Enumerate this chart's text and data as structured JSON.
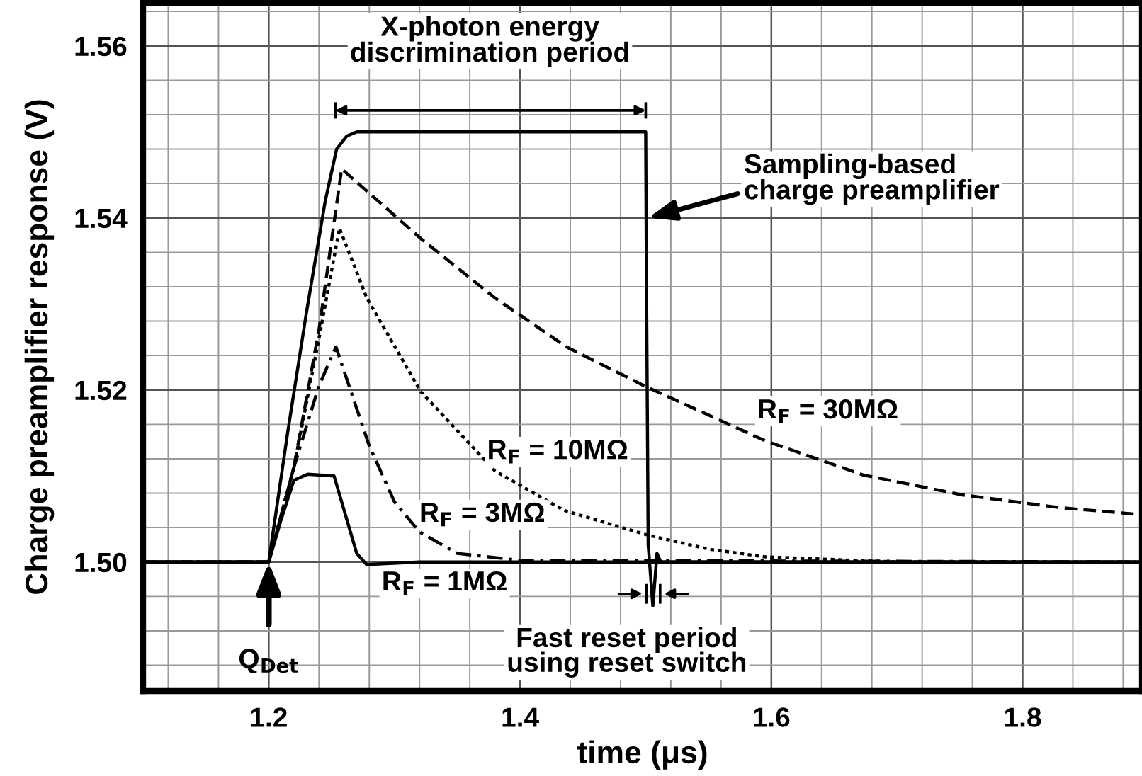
{
  "chart_data": {
    "type": "line",
    "xlabel": "time (μs)",
    "ylabel": "Charge preamplifier response (V)",
    "xlim": [
      1.1,
      1.895
    ],
    "xticks": [
      1.2,
      1.4,
      1.6,
      1.8
    ],
    "ylim": [
      1.485,
      1.565
    ],
    "yticks": [
      {
        "value": 1.5,
        "label": "1.50"
      },
      {
        "value": 1.52,
        "label": "1.52"
      },
      {
        "value": 1.54,
        "label": "1.54"
      },
      {
        "value": 1.56,
        "label": "1.56"
      }
    ],
    "grid": true,
    "legend": false,
    "series": [
      {
        "color": "#000000",
        "line_style": "solid",
        "x": [
          1.1,
          1.2,
          1.215,
          1.23,
          1.245,
          1.254,
          1.262,
          1.27,
          1.3,
          1.4,
          1.5,
          1.5005,
          1.502,
          1.5057,
          1.509,
          1.512,
          1.52,
          1.6,
          1.895
        ],
        "values": [
          1.5,
          1.5,
          1.515,
          1.529,
          1.542,
          1.548,
          1.5495,
          1.55,
          1.55,
          1.55,
          1.55,
          1.535,
          1.502,
          1.4949,
          1.501,
          1.5,
          1.5,
          1.5,
          1.5
        ]
      },
      {
        "name": "R$_{F}$ = 1MΩ",
        "color": "#000000",
        "line_style": "solid",
        "x": [
          1.1,
          1.2,
          1.21,
          1.22,
          1.231,
          1.252,
          1.26,
          1.27,
          1.278,
          1.29,
          1.32,
          1.895
        ],
        "values": [
          1.5,
          1.5,
          1.505,
          1.5095,
          1.5102,
          1.51,
          1.506,
          1.501,
          1.4997,
          1.4998,
          1.5,
          1.5
        ]
      },
      {
        "name": "R$_{F}$ = 3MΩ",
        "color": "#000000",
        "line_style": "dashdot",
        "x": [
          1.1,
          1.2,
          1.22,
          1.24,
          1.2535,
          1.265,
          1.28,
          1.3,
          1.32,
          1.35,
          1.4,
          1.895
        ],
        "values": [
          1.5,
          1.5,
          1.511,
          1.5205,
          1.525,
          1.52,
          1.5135,
          1.507,
          1.5035,
          1.501,
          1.5002,
          1.5
        ]
      },
      {
        "name": "R$_{F}$ = 10MΩ",
        "color": "#000000",
        "line_style": "dotted",
        "x": [
          1.1,
          1.2,
          1.22,
          1.24,
          1.2563,
          1.278,
          1.321,
          1.38,
          1.435,
          1.5,
          1.55,
          1.595,
          1.7,
          1.895
        ],
        "values": [
          1.5,
          1.5,
          1.511,
          1.526,
          1.5388,
          1.5307,
          1.5198,
          1.5106,
          1.506,
          1.5032,
          1.5015,
          1.5006,
          1.5,
          1.5
        ]
      },
      {
        "name": "R$_{F}$ = 30MΩ",
        "color": "#000000",
        "line_style": "dashed",
        "x": [
          1.1,
          1.2,
          1.22,
          1.24,
          1.258,
          1.321,
          1.38,
          1.437,
          1.5,
          1.595,
          1.6735,
          1.752,
          1.831,
          1.895
        ],
        "values": [
          1.5,
          1.5,
          1.511,
          1.527,
          1.5457,
          1.5376,
          1.5307,
          1.525,
          1.5204,
          1.5141,
          1.5101,
          1.5078,
          1.5063,
          1.5055
        ]
      }
    ],
    "annotations": [
      "X-photon energy\ndiscrimination period",
      {
        "text": "Sampling-based\ncharge preamplifier",
        "x": 1.502,
        "y": 1.54
      },
      {
        "text": "Q$_{Det}$",
        "x": 1.2,
        "y": 1.5
      },
      "Fast reset period\nusing reset switch"
    ]
  }
}
